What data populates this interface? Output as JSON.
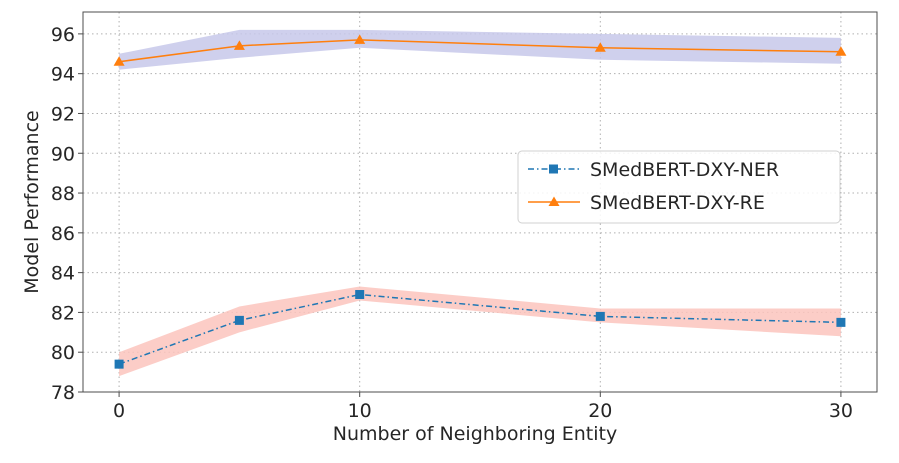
{
  "chart_data": {
    "type": "line",
    "title": "",
    "xlabel": "Number of Neighboring Entity",
    "ylabel": "Model Performance",
    "xlim": [
      -1.5,
      31.5
    ],
    "ylim": [
      78,
      97.1
    ],
    "xticks": [
      0,
      10,
      20,
      30
    ],
    "yticks": [
      78,
      80,
      82,
      84,
      86,
      88,
      90,
      92,
      94,
      96
    ],
    "grid": true,
    "legend_position": "center-right",
    "series": [
      {
        "name": "SMedBERT-DXY-NER",
        "color": "#1f77b4",
        "band_color": "#fbc4bd",
        "marker": "square",
        "linestyle": "dashdot",
        "x": [
          0,
          5,
          10,
          20,
          30
        ],
        "values": [
          79.4,
          81.6,
          82.9,
          81.8,
          81.5
        ],
        "band_low": [
          78.8,
          81.0,
          82.6,
          81.5,
          80.8
        ],
        "band_high": [
          80.0,
          82.3,
          83.3,
          82.2,
          82.2
        ]
      },
      {
        "name": "SMedBERT-DXY-RE",
        "color": "#ff7f0e",
        "band_color": "#c7c8ea",
        "marker": "triangle",
        "linestyle": "solid",
        "x": [
          0,
          5,
          10,
          20,
          30
        ],
        "values": [
          94.6,
          95.4,
          95.7,
          95.3,
          95.1
        ],
        "band_low": [
          94.2,
          94.8,
          95.3,
          94.7,
          94.5
        ],
        "band_high": [
          95.0,
          96.2,
          96.2,
          96.0,
          95.8
        ]
      }
    ]
  }
}
